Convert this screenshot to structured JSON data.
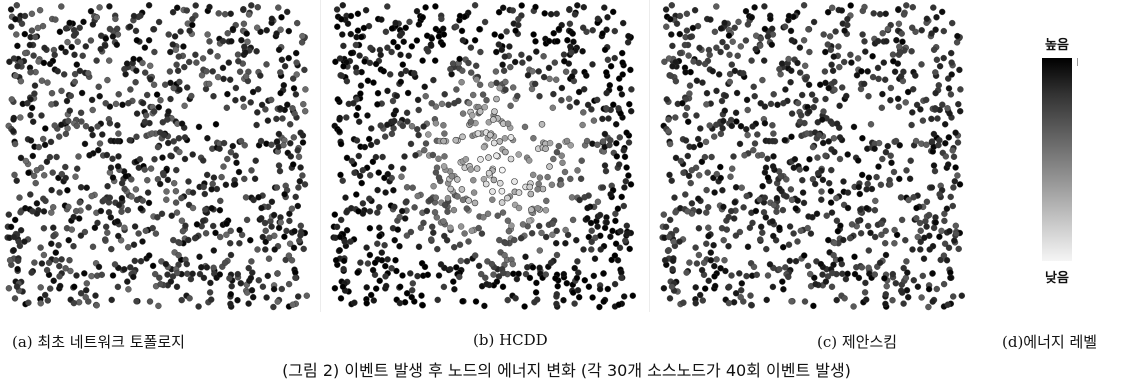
{
  "chart_data": [
    {
      "type": "scatter",
      "caption": "(a) 최초 네트워크 토폴로지",
      "node_count": 1000,
      "energy_pattern": "uniform",
      "energy_range": [
        0.55,
        1.0
      ]
    },
    {
      "type": "scatter",
      "caption": "(b) HCDD",
      "node_count": 1000,
      "energy_pattern": "depleted-center",
      "energy_range": [
        0.0,
        1.0
      ]
    },
    {
      "type": "scatter",
      "caption": "(c) 제안스킴",
      "node_count": 1000,
      "energy_pattern": "uniform",
      "energy_range": [
        0.6,
        1.0
      ]
    }
  ],
  "legend": {
    "high_label": "높음",
    "low_label": "낮음",
    "caption": "(d)에너지 레벨",
    "colors": [
      "#000000",
      "#f5f5f5"
    ]
  },
  "figure_title": "(그림 2) 이벤트 발생 후 노드의 에너지 변화 (각 30개 소스노드가 40회 이벤트 발생)"
}
